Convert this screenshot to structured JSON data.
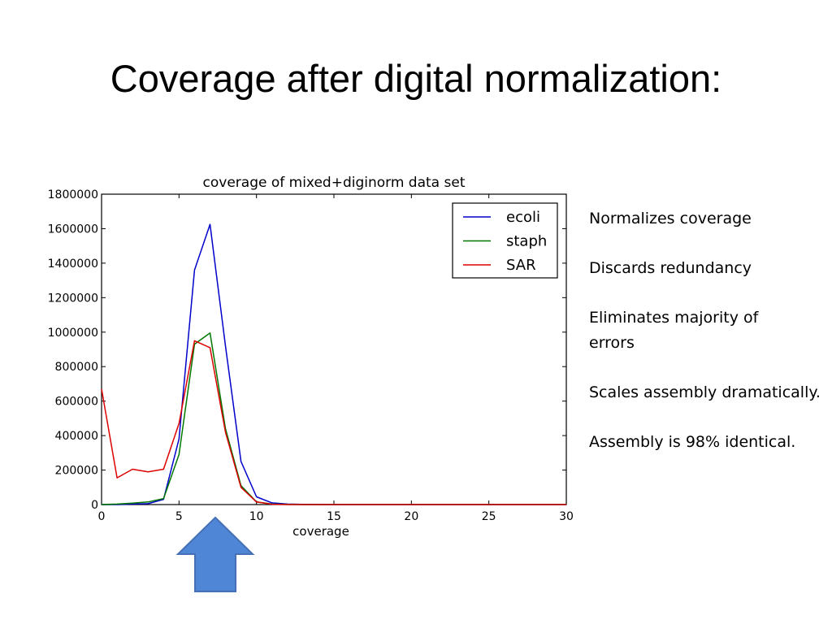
{
  "slide": {
    "title": "Coverage after digital normalization:",
    "bullets": [
      "Normalizes coverage",
      "Discards redundancy",
      "Eliminates majority of errors",
      "Scales assembly dramatically.",
      "Assembly is 98% identical."
    ]
  },
  "colors": {
    "ecoli": "#0000cc",
    "staph": "#007700",
    "sar": "#dd0000",
    "arrow_fill": "#4f86d6",
    "arrow_stroke": "#4570b5"
  },
  "chart_data": {
    "type": "line",
    "title": "coverage of mixed+diginorm data set",
    "xlabel": "coverage",
    "ylabel": "",
    "xlim": [
      0,
      30
    ],
    "ylim": [
      0,
      1800000
    ],
    "xticks": [
      0,
      5,
      10,
      15,
      20,
      25,
      30
    ],
    "yticks": [
      0,
      200000,
      400000,
      600000,
      800000,
      1000000,
      1200000,
      1400000,
      1600000,
      1800000
    ],
    "legend_position": "top-right",
    "x": [
      0,
      1,
      2,
      3,
      4,
      5,
      6,
      7,
      8,
      9,
      10,
      11,
      12,
      13,
      14,
      15,
      16,
      17,
      18,
      19,
      20,
      21,
      22,
      23,
      24,
      25,
      26,
      27,
      28,
      29,
      30
    ],
    "series": [
      {
        "name": "ecoli",
        "color": "#0000cc",
        "values": [
          0,
          0,
          3000,
          5000,
          30000,
          380000,
          1360000,
          1625000,
          920000,
          250000,
          45000,
          10000,
          3000,
          1000,
          500,
          0,
          0,
          0,
          0,
          0,
          0,
          0,
          0,
          0,
          0,
          0,
          0,
          0,
          0,
          0,
          0
        ]
      },
      {
        "name": "staph",
        "color": "#007700",
        "values": [
          0,
          3000,
          8000,
          15000,
          35000,
          290000,
          930000,
          995000,
          440000,
          110000,
          15000,
          3000,
          1000,
          0,
          0,
          0,
          0,
          0,
          0,
          0,
          0,
          0,
          0,
          0,
          0,
          0,
          0,
          0,
          0,
          0,
          0
        ]
      },
      {
        "name": "SAR",
        "color": "#dd0000",
        "values": [
          670000,
          155000,
          205000,
          190000,
          205000,
          470000,
          950000,
          910000,
          420000,
          100000,
          15000,
          2000,
          0,
          0,
          0,
          0,
          0,
          0,
          0,
          0,
          0,
          0,
          0,
          0,
          0,
          0,
          0,
          0,
          0,
          0,
          0
        ]
      }
    ]
  }
}
